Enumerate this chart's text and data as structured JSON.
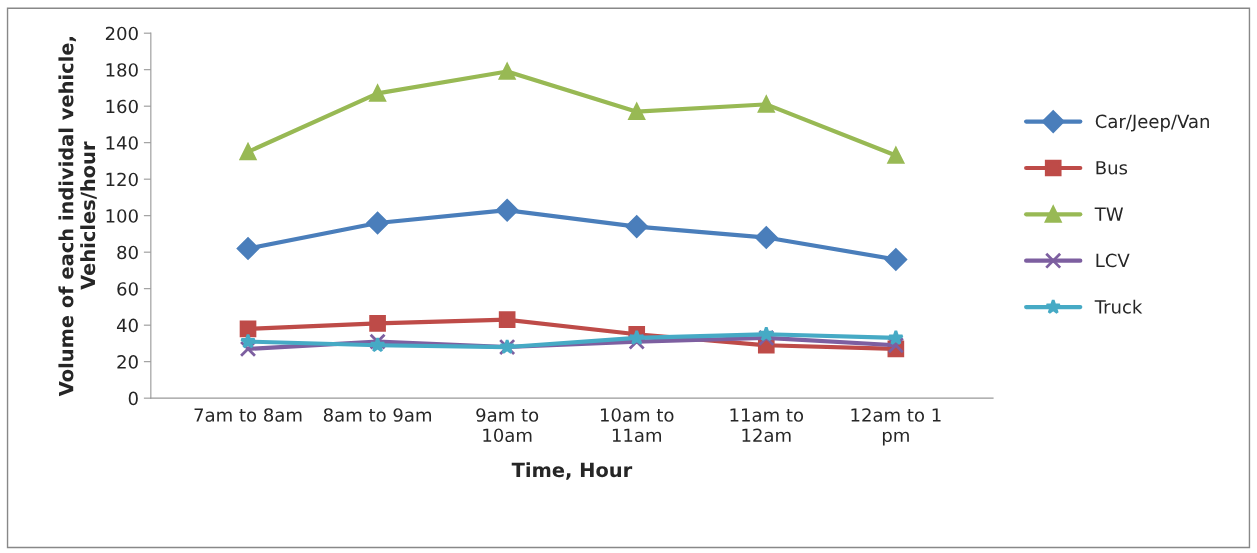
{
  "chart_data": {
    "type": "line",
    "xlabel": "Time, Hour",
    "ylabel": "Volume of each individal vehicle,\nVehicles/hour",
    "categories": [
      "7am to 8am",
      "8am to 9am",
      "9am to\n10am",
      "10am to\n11am",
      "11am to\n12am",
      "12am to 1\npm"
    ],
    "series": [
      {
        "name": "Car/Jeep/Van",
        "color": "#4a7ebb",
        "marker": "diamond",
        "values": [
          82,
          96,
          103,
          94,
          88,
          76
        ]
      },
      {
        "name": "Bus",
        "color": "#be4b48",
        "marker": "square",
        "values": [
          38,
          41,
          43,
          35,
          29,
          27
        ]
      },
      {
        "name": "TW",
        "color": "#98b954",
        "marker": "triangle",
        "values": [
          135,
          167,
          179,
          157,
          161,
          133
        ]
      },
      {
        "name": "LCV",
        "color": "#7d5fa0",
        "marker": "cross",
        "values": [
          27,
          31,
          28,
          31,
          33,
          29
        ]
      },
      {
        "name": "Truck",
        "color": "#46aac5",
        "marker": "star",
        "values": [
          31,
          29,
          28,
          33,
          35,
          33
        ]
      }
    ],
    "ylim": [
      0,
      200
    ],
    "yticks": [
      0,
      20,
      40,
      60,
      80,
      100,
      120,
      140,
      160,
      180,
      200
    ],
    "grid": false,
    "legend": "right",
    "line_style": "solid"
  }
}
